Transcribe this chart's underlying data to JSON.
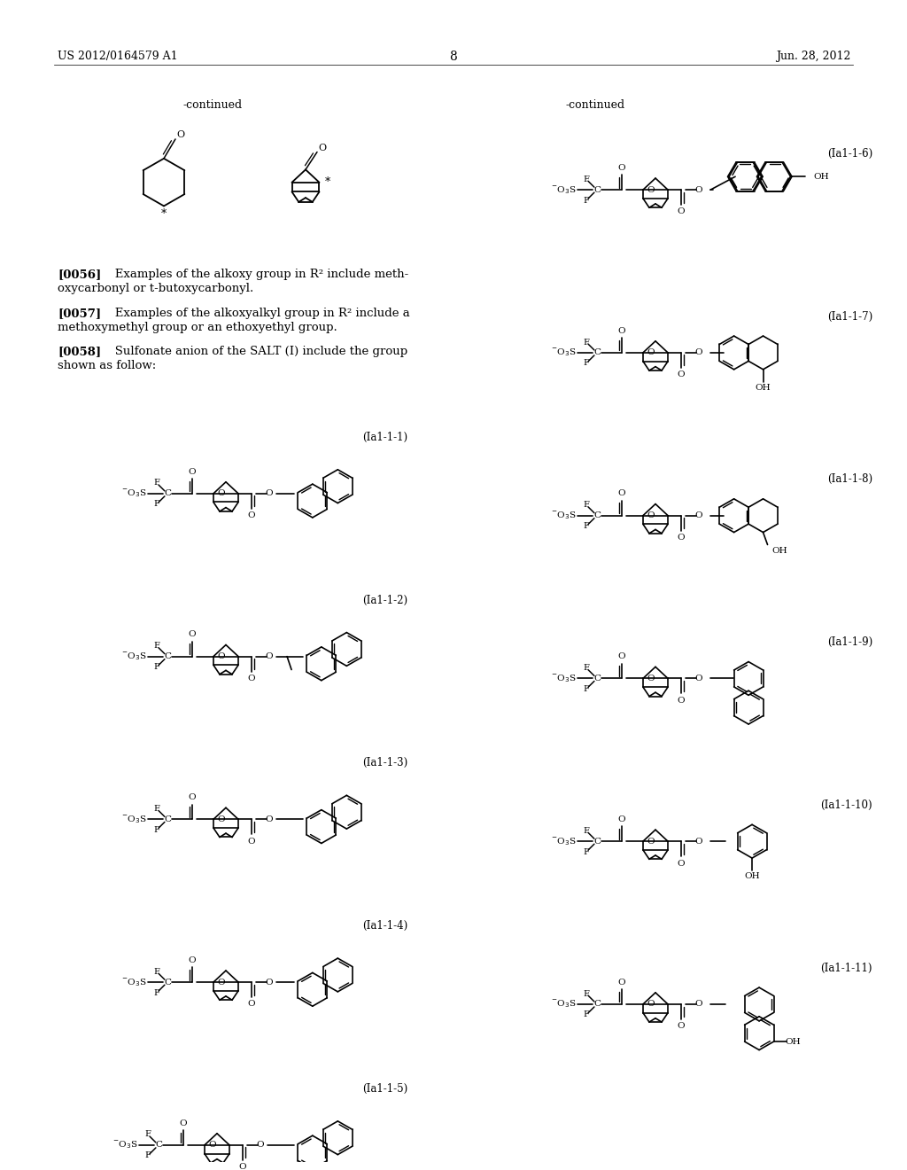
{
  "header_left": "US 2012/0164579 A1",
  "header_right": "Jun. 28, 2012",
  "page_number": "8",
  "continued_left": "-continued",
  "continued_right": "-continued",
  "p0056_bold": "[0056]",
  "p0056_text": "   Examples of the alkoxy group in R² include meth-\noxycarbonyl or t-butoxycarbonyl.",
  "p0057_bold": "[0057]",
  "p0057_text": "   Examples of the alkoxyalkyl group in R² include a\nmethoxymethyl group or an ethoxyethyl group.",
  "p0058_bold": "[0058]",
  "p0058_text": "   Sulfonate anion of the SALT (I) include the group\nshown as follow:",
  "labels_left": [
    "(Ia1-1-1)",
    "(Ia1-1-2)",
    "(Ia1-1-3)",
    "(Ia1-1-4)",
    "(Ia1-1-5)"
  ],
  "labels_right": [
    "(Ia1-1-6)",
    "(Ia1-1-7)",
    "(Ia1-1-8)",
    "(Ia1-1-9)",
    "(Ia1-1-10)",
    "(Ia1-1-11)"
  ],
  "bg": "#ffffff"
}
